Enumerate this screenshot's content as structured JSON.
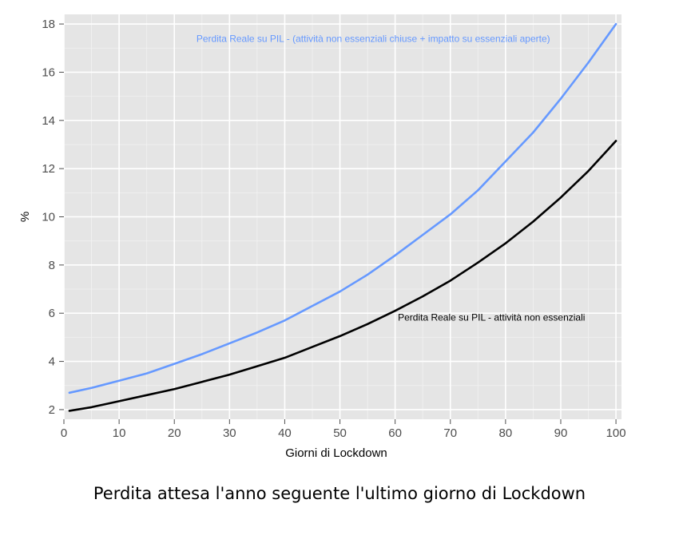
{
  "caption": "Perdita attesa l'anno seguente l'ultimo giorno di Lockdown",
  "chart_data": {
    "type": "line",
    "title": "",
    "xlabel": "Giorni di Lockdown",
    "ylabel": "%",
    "xlim": [
      0,
      101
    ],
    "ylim": [
      1.6,
      18.4
    ],
    "x_ticks": [
      0,
      10,
      20,
      30,
      40,
      50,
      60,
      70,
      80,
      90,
      100
    ],
    "y_ticks": [
      2,
      4,
      6,
      8,
      10,
      12,
      14,
      16,
      18
    ],
    "grid": true,
    "background": "#e5e5e5",
    "x": [
      1,
      5,
      10,
      15,
      20,
      25,
      30,
      35,
      40,
      45,
      50,
      55,
      60,
      65,
      70,
      75,
      80,
      85,
      90,
      95,
      100
    ],
    "series": [
      {
        "name": "Perdita Reale su PIL - (attività non essenziali chiuse + impatto su essenziali aperte)",
        "color": "#6699ff",
        "values": [
          2.7,
          2.9,
          3.2,
          3.5,
          3.9,
          4.3,
          4.75,
          5.2,
          5.7,
          6.3,
          6.9,
          7.6,
          8.4,
          9.25,
          10.1,
          11.1,
          12.3,
          13.5,
          14.9,
          16.4,
          18.0
        ]
      },
      {
        "name": "Perdita Reale su PIL - attività non essenziali",
        "color": "#000000",
        "values": [
          1.95,
          2.1,
          2.35,
          2.6,
          2.85,
          3.15,
          3.45,
          3.8,
          4.15,
          4.6,
          5.05,
          5.55,
          6.1,
          6.7,
          7.35,
          8.1,
          8.9,
          9.8,
          10.8,
          11.9,
          13.15
        ]
      }
    ],
    "annotations": [
      {
        "text": "Perdita Reale su PIL - (attività non essenziali chiuse + impatto su essenziali aperte)",
        "x": 24,
        "y": 17.25,
        "color": "#6699ff"
      },
      {
        "text": "Perdita Reale su PIL - attività non essenziali",
        "x": 60.5,
        "y": 5.7,
        "color": "#000000"
      }
    ]
  }
}
